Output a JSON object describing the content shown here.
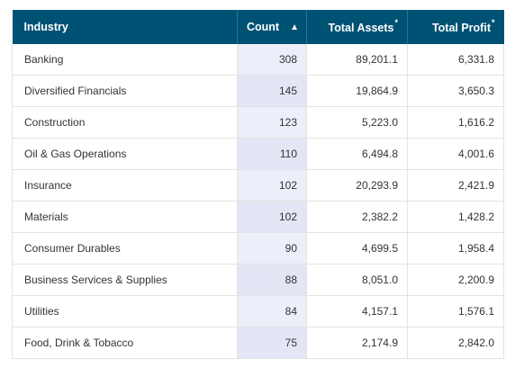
{
  "table": {
    "columns": [
      {
        "label": "Industry",
        "superscript": "",
        "sort_icon": ""
      },
      {
        "label": "Count",
        "superscript": "",
        "sort_icon": "▲"
      },
      {
        "label": "Total Assets",
        "superscript": "*",
        "sort_icon": ""
      },
      {
        "label": "Total Profit",
        "superscript": "*",
        "sort_icon": ""
      }
    ],
    "sorted_column": "Count",
    "sort_direction": "ascending-indicator",
    "header_color": "#005275",
    "highlight_column_color": "#eceefa",
    "rows": [
      {
        "industry": "Banking",
        "count": "308",
        "total_assets": "89,201.1",
        "total_profit": "6,331.8"
      },
      {
        "industry": "Diversified Financials",
        "count": "145",
        "total_assets": "19,864.9",
        "total_profit": "3,650.3"
      },
      {
        "industry": "Construction",
        "count": "123",
        "total_assets": "5,223.0",
        "total_profit": "1,616.2"
      },
      {
        "industry": "Oil & Gas Operations",
        "count": "110",
        "total_assets": "6,494.8",
        "total_profit": "4,001.6"
      },
      {
        "industry": "Insurance",
        "count": "102",
        "total_assets": "20,293.9",
        "total_profit": "2,421.9"
      },
      {
        "industry": "Materials",
        "count": "102",
        "total_assets": "2,382.2",
        "total_profit": "1,428.2"
      },
      {
        "industry": "Consumer Durables",
        "count": "90",
        "total_assets": "4,699.5",
        "total_profit": "1,958.4"
      },
      {
        "industry": "Business Services & Supplies",
        "count": "88",
        "total_assets": "8,051.0",
        "total_profit": "2,200.9"
      },
      {
        "industry": "Utilities",
        "count": "84",
        "total_assets": "4,157.1",
        "total_profit": "1,576.1"
      },
      {
        "industry": "Food, Drink & Tobacco",
        "count": "75",
        "total_assets": "2,174.9",
        "total_profit": "2,842.0"
      }
    ]
  }
}
